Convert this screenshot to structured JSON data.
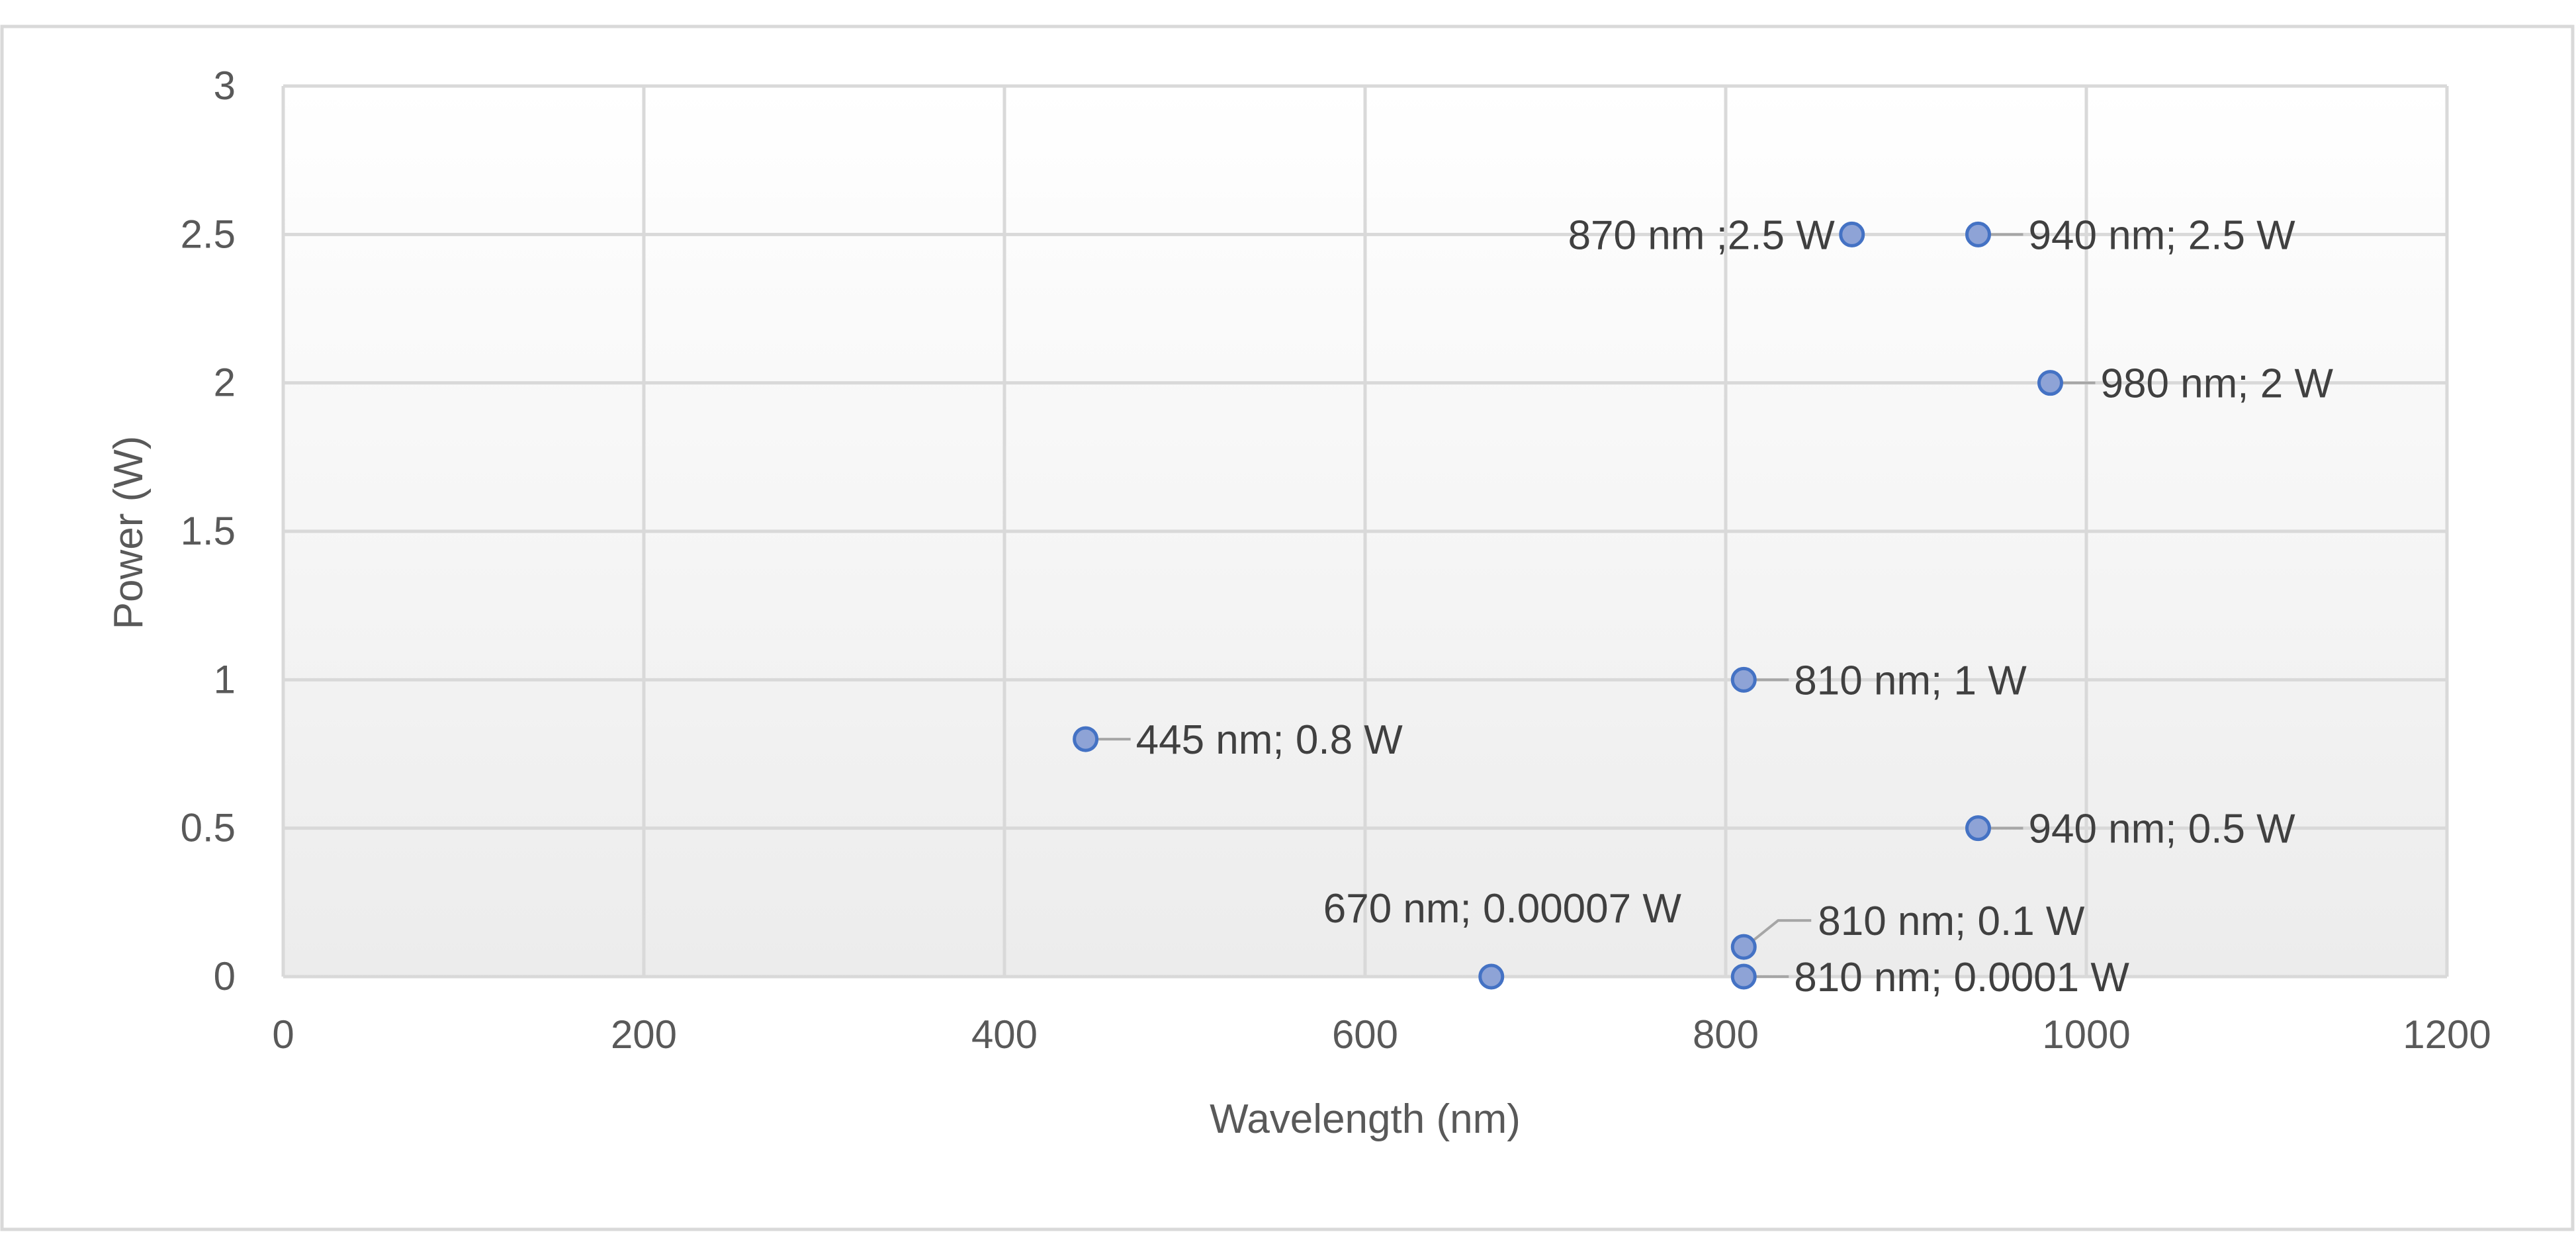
{
  "colors": {
    "marker_fill": "#8ea3d6",
    "marker_stroke": "#4472c4",
    "gridline": "#d9d9d9",
    "plot_gradient_top": "#ffffff",
    "plot_gradient_bottom": "#ececec",
    "frame_border": "#d9d9d9"
  },
  "chart_data": {
    "type": "scatter",
    "title": "",
    "xlabel": "Wavelength (nm)",
    "ylabel": "Power (W)",
    "xlim": [
      0,
      1200
    ],
    "ylim": [
      0,
      3
    ],
    "x_ticks": [
      0,
      200,
      400,
      600,
      800,
      1000,
      1200
    ],
    "x_tick_labels": [
      "0",
      "200",
      "400",
      "600",
      "800",
      "1000",
      "1200"
    ],
    "y_ticks": [
      0,
      0.5,
      1,
      1.5,
      2,
      2.5,
      3
    ],
    "y_tick_labels": [
      "0",
      "0.5",
      "1",
      "1.5",
      "2",
      "2.5",
      "3"
    ],
    "grid": true,
    "legend": "none",
    "points": [
      {
        "x": 445,
        "y": 0.8,
        "label": "445 nm; 0.8 W",
        "label_side": "right"
      },
      {
        "x": 670,
        "y": 7e-05,
        "label": "670 nm; 0.00007 W",
        "label_side": "above"
      },
      {
        "x": 810,
        "y": 1,
        "label": "810 nm; 1 W",
        "label_side": "right"
      },
      {
        "x": 810,
        "y": 0.1,
        "label": "810 nm; 0.1 W",
        "label_side": "upper-right"
      },
      {
        "x": 810,
        "y": 0.0001,
        "label": "810 nm; 0.0001 W",
        "label_side": "right"
      },
      {
        "x": 870,
        "y": 2.5,
        "label": "870 nm ;2.5 W",
        "label_side": "left"
      },
      {
        "x": 940,
        "y": 2.5,
        "label": "940 nm;  2.5 W",
        "label_side": "right"
      },
      {
        "x": 940,
        "y": 0.5,
        "label": "940 nm; 0.5 W",
        "label_side": "right"
      },
      {
        "x": 980,
        "y": 2,
        "label": "980 nm; 2 W",
        "label_side": "right"
      }
    ]
  }
}
